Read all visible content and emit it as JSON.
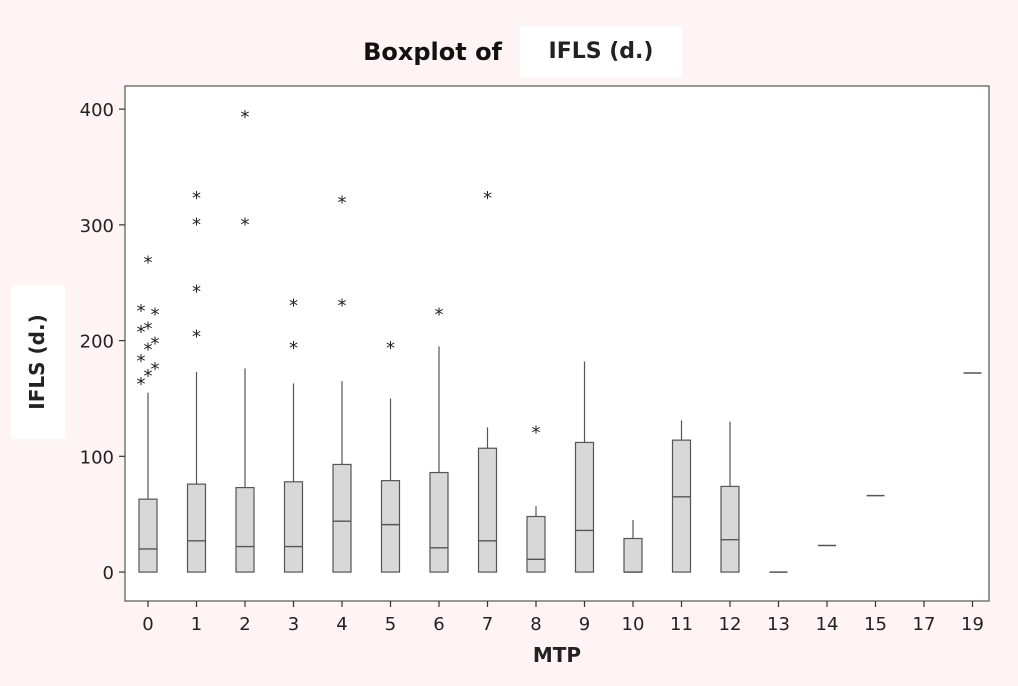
{
  "chart_data": {
    "type": "boxplot",
    "title_prefix": "Boxplot of",
    "title_variable": "IFLS (d.)",
    "xlabel": "MTP",
    "ylabel": "IFLS (d.)",
    "ylim": [
      -25,
      420
    ],
    "yticks": [
      0,
      100,
      200,
      300,
      400
    ],
    "categories": [
      "0",
      "1",
      "2",
      "3",
      "4",
      "5",
      "6",
      "7",
      "8",
      "9",
      "10",
      "11",
      "12",
      "13",
      "14",
      "15",
      "17",
      "19"
    ],
    "boxes": [
      {
        "category": "0",
        "q1": 0,
        "median": 20,
        "q3": 63,
        "whisker_low": 0,
        "whisker_high": 155,
        "outliers": [
          165,
          172,
          178,
          185,
          195,
          200,
          210,
          213,
          225,
          228,
          270
        ]
      },
      {
        "category": "1",
        "q1": 0,
        "median": 27,
        "q3": 76,
        "whisker_low": 0,
        "whisker_high": 173,
        "outliers": [
          206,
          245,
          303,
          326
        ]
      },
      {
        "category": "2",
        "q1": 0,
        "median": 22,
        "q3": 73,
        "whisker_low": 0,
        "whisker_high": 176,
        "outliers": [
          303,
          396
        ]
      },
      {
        "category": "3",
        "q1": 0,
        "median": 22,
        "q3": 78,
        "whisker_low": 0,
        "whisker_high": 163,
        "outliers": [
          196,
          233
        ]
      },
      {
        "category": "4",
        "q1": 0,
        "median": 44,
        "q3": 93,
        "whisker_low": 0,
        "whisker_high": 165,
        "outliers": [
          233,
          322
        ]
      },
      {
        "category": "5",
        "q1": 0,
        "median": 41,
        "q3": 79,
        "whisker_low": 0,
        "whisker_high": 150,
        "outliers": [
          196
        ]
      },
      {
        "category": "6",
        "q1": 0,
        "median": 21,
        "q3": 86,
        "whisker_low": 0,
        "whisker_high": 195,
        "outliers": [
          225
        ]
      },
      {
        "category": "7",
        "q1": 0,
        "median": 27,
        "q3": 107,
        "whisker_low": 0,
        "whisker_high": 125,
        "outliers": [
          326
        ]
      },
      {
        "category": "8",
        "q1": 0,
        "median": 11,
        "q3": 48,
        "whisker_low": 0,
        "whisker_high": 57,
        "outliers": [
          123
        ]
      },
      {
        "category": "9",
        "q1": 0,
        "median": 36,
        "q3": 112,
        "whisker_low": 0,
        "whisker_high": 182,
        "outliers": []
      },
      {
        "category": "10",
        "q1": 0,
        "median": 0,
        "q3": 29,
        "whisker_low": 0,
        "whisker_high": 45,
        "outliers": []
      },
      {
        "category": "11",
        "q1": 0,
        "median": 65,
        "q3": 114,
        "whisker_low": 0,
        "whisker_high": 131,
        "outliers": []
      },
      {
        "category": "12",
        "q1": 0,
        "median": 28,
        "q3": 74,
        "whisker_low": 0,
        "whisker_high": 130,
        "outliers": []
      },
      {
        "category": "13",
        "single": 0
      },
      {
        "category": "14",
        "single": 23
      },
      {
        "category": "15",
        "single": 66
      },
      {
        "category": "17"
      },
      {
        "category": "19",
        "single": 172
      }
    ],
    "colors": {
      "box_fill": "#d8d8d8",
      "stroke": "#555555",
      "axis": "#333333",
      "plot_bg": "#ffffff",
      "page_bg": "#fdf4f3"
    },
    "grid": false
  }
}
